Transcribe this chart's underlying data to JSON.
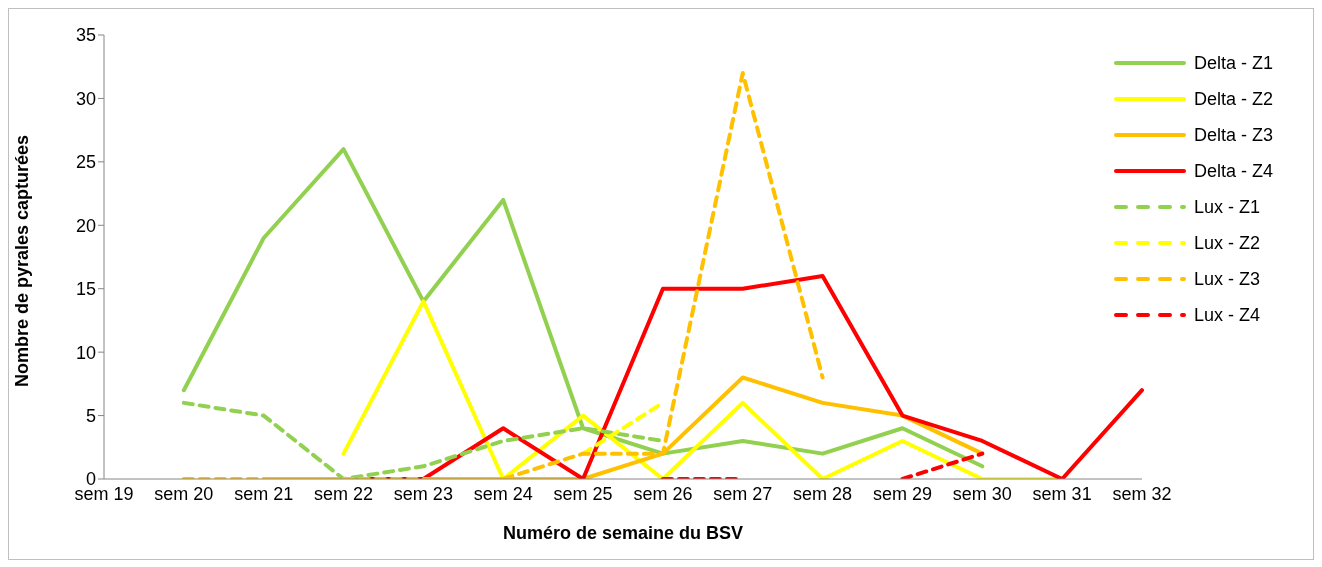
{
  "chart_data": {
    "type": "line",
    "xlabel": "Numéro de semaine du BSV",
    "ylabel": "Nombre de pyrales capturées",
    "categories": [
      "sem 19",
      "sem 20",
      "sem 21",
      "sem 22",
      "sem 23",
      "sem 24",
      "sem 25",
      "sem 26",
      "sem 27",
      "sem 28",
      "sem 29",
      "sem 30",
      "sem 31",
      "sem 32"
    ],
    "series": [
      {
        "name": "Delta - Z1",
        "color": "#92d050",
        "line_style": "solid",
        "values": [
          null,
          7,
          19,
          26,
          14,
          22,
          4,
          2,
          3,
          2,
          4,
          1,
          null,
          null
        ]
      },
      {
        "name": "Delta - Z2",
        "color": "#ffff00",
        "line_style": "solid",
        "values": [
          null,
          null,
          null,
          2,
          14,
          0,
          5,
          0,
          6,
          0,
          3,
          0,
          0,
          null
        ]
      },
      {
        "name": "Delta - Z3",
        "color": "#ffc000",
        "line_style": "solid",
        "values": [
          null,
          null,
          0,
          0,
          0,
          0,
          0,
          2,
          8,
          6,
          5,
          2,
          null,
          null
        ]
      },
      {
        "name": "Delta - Z4",
        "color": "#ff0000",
        "line_style": "solid",
        "values": [
          null,
          null,
          null,
          0,
          0,
          4,
          0,
          15,
          15,
          16,
          5,
          3,
          0,
          7
        ]
      },
      {
        "name": "Lux - Z1",
        "color": "#92d050",
        "line_style": "dashed",
        "values": [
          null,
          6,
          5,
          0,
          1,
          3,
          4,
          3,
          null,
          null,
          null,
          null,
          null,
          null
        ]
      },
      {
        "name": "Lux - Z2",
        "color": "#ffff00",
        "line_style": "dashed",
        "values": [
          null,
          null,
          null,
          null,
          null,
          null,
          2,
          6,
          null,
          null,
          null,
          null,
          null,
          null
        ]
      },
      {
        "name": "Lux - Z3",
        "color": "#ffc000",
        "line_style": "dashed",
        "values": [
          null,
          0,
          0,
          0,
          0,
          0,
          2,
          2,
          32,
          8,
          null,
          null,
          null,
          null
        ]
      },
      {
        "name": "Lux - Z4",
        "color": "#ff0000",
        "line_style": "dashed",
        "values": [
          null,
          null,
          null,
          null,
          null,
          null,
          null,
          0,
          0,
          null,
          0,
          2,
          null,
          null
        ]
      }
    ],
    "ylim": [
      0,
      35
    ],
    "yticks": [
      0,
      5,
      10,
      15,
      20,
      25,
      30,
      35
    ],
    "grid": false,
    "legend": "top right",
    "marker": "none"
  }
}
